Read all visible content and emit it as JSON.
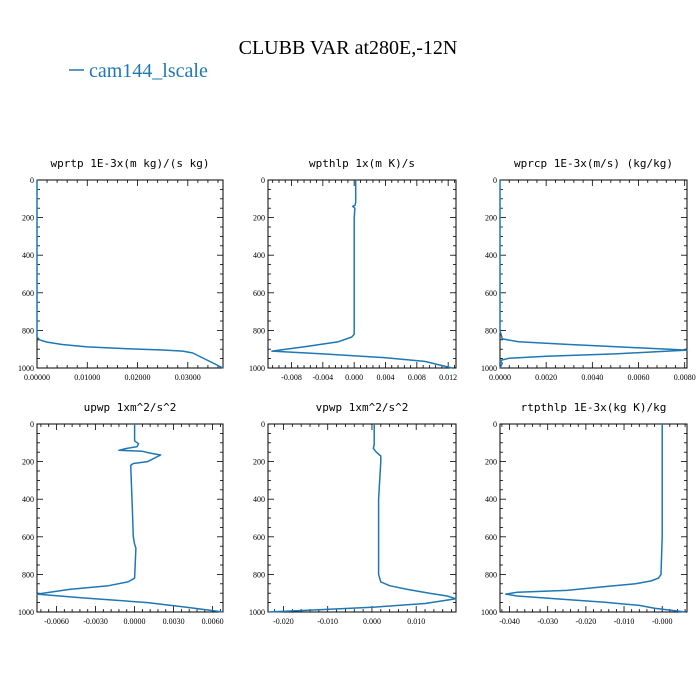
{
  "figure": {
    "title": "CLUBB VAR at280E,-12N",
    "legend": [
      {
        "name": "cam144_lscale",
        "color": "#1f77b4"
      }
    ]
  },
  "chart_data": [
    {
      "type": "line",
      "title": "wprtp  1E-3x(m kg)/(s kg)",
      "xlim": [
        0,
        0.037
      ],
      "ylim": [
        1000,
        0
      ],
      "xticks": [
        0,
        0.01,
        0.02,
        0.03
      ],
      "xtick_labels": [
        "0.00000",
        "0.01000",
        "0.02000",
        "0.03000"
      ],
      "yticks": [
        0,
        200,
        400,
        600,
        800,
        1000
      ],
      "ytick_labels": [
        "0",
        "200",
        "400",
        "600",
        "800",
        "1000"
      ],
      "series": [
        {
          "color": "#1f77b4",
          "x": [
            0,
            0,
            0,
            0.0005,
            0.002,
            0.005,
            0.01,
            0.018,
            0.025,
            0.029,
            0.031,
            0.037
          ],
          "y": [
            0,
            400,
            835,
            850,
            862,
            875,
            888,
            898,
            904,
            910,
            920,
            1000
          ]
        }
      ]
    },
    {
      "type": "line",
      "title": "wpthlp  1x(m K)/s",
      "xlim": [
        -0.011,
        0.013
      ],
      "ylim": [
        1000,
        0
      ],
      "xticks": [
        -0.008,
        -0.004,
        0,
        0.004,
        0.008,
        0.012
      ],
      "xtick_labels": [
        "-0.008",
        "-0.004",
        "0.000",
        "0.004",
        "0.008",
        "0.012"
      ],
      "yticks": [
        0,
        200,
        400,
        600,
        800,
        1000
      ],
      "ytick_labels": [
        "0",
        "200",
        "400",
        "600",
        "800",
        "1000"
      ],
      "series": [
        {
          "color": "#1f77b4",
          "x": [
            0.0002,
            0.0002,
            0.0001,
            -0.0002,
            0.0001,
            0,
            0,
            -0.0003,
            -0.002,
            -0.006,
            -0.0105,
            -0.004,
            0.004,
            0.009,
            0.0125
          ],
          "y": [
            0,
            120,
            135,
            140,
            150,
            200,
            820,
            835,
            860,
            885,
            910,
            925,
            945,
            965,
            1000
          ]
        }
      ]
    },
    {
      "type": "line",
      "title": "wprcp  1E-3x(m/s) (kg/kg)",
      "xlim": [
        0,
        0.0081
      ],
      "ylim": [
        1000,
        0
      ],
      "xticks": [
        0,
        0.002,
        0.004,
        0.006,
        0.008
      ],
      "xtick_labels": [
        "0.0000",
        "0.0020",
        "0.0040",
        "0.0060",
        "0.0080"
      ],
      "yticks": [
        0,
        200,
        400,
        600,
        800,
        1000
      ],
      "ytick_labels": [
        "0",
        "200",
        "400",
        "600",
        "800",
        "1000"
      ],
      "series": [
        {
          "color": "#1f77b4",
          "x": [
            0,
            0,
            0.0001,
            0.0008,
            0.003,
            0.0055,
            0.0081,
            0.005,
            0.002,
            0.0004,
            0,
            0.0001,
            0
          ],
          "y": [
            0,
            800,
            845,
            860,
            875,
            890,
            905,
            925,
            938,
            948,
            960,
            975,
            1000
          ]
        }
      ]
    },
    {
      "type": "line",
      "title": "upwp  1xm^2/s^2",
      "xlim": [
        -0.0075,
        0.0068
      ],
      "ylim": [
        1000,
        0
      ],
      "xticks": [
        -0.006,
        -0.003,
        0,
        0.003,
        0.006
      ],
      "xtick_labels": [
        "-0.0060",
        "-0.0030",
        "0.0000",
        "0.0030",
        "0.0060"
      ],
      "yticks": [
        0,
        200,
        400,
        600,
        800,
        1000
      ],
      "ytick_labels": [
        "0",
        "200",
        "400",
        "600",
        "800",
        "1000"
      ],
      "series": [
        {
          "color": "#1f77b4",
          "x": [
            0,
            0,
            0.0003,
            0.0002,
            -0.0006,
            -0.0012,
            0.0006,
            0.0012,
            0.002,
            0.001,
            -0.0001,
            -0.0003,
            -0.0002,
            -0.0001,
            0,
            0.0001,
            0,
            -0.0005,
            -0.002,
            -0.005,
            -0.0075,
            -0.004,
            0.001,
            0.004,
            0.0068
          ],
          "y": [
            0,
            90,
            105,
            120,
            130,
            140,
            145,
            155,
            165,
            200,
            210,
            220,
            400,
            600,
            640,
            660,
            820,
            840,
            860,
            880,
            905,
            925,
            950,
            975,
            1000
          ]
        }
      ]
    },
    {
      "type": "line",
      "title": "vpwp  1xm^2/s^2",
      "xlim": [
        -0.0235,
        0.019
      ],
      "ylim": [
        1000,
        0
      ],
      "xticks": [
        -0.02,
        -0.01,
        0,
        0.01
      ],
      "xtick_labels": [
        "-0.020",
        "-0.010",
        "0.000",
        "0.010"
      ],
      "yticks": [
        0,
        200,
        400,
        600,
        800,
        1000
      ],
      "ytick_labels": [
        "0",
        "200",
        "400",
        "600",
        "800",
        "1000"
      ],
      "series": [
        {
          "color": "#1f77b4",
          "x": [
            0.0005,
            0.0005,
            0.0003,
            0.001,
            0.002,
            0.002,
            0.0015,
            0.0015,
            0.002,
            0.004,
            0.008,
            0.013,
            0.017,
            0.019,
            0.012,
            0,
            -0.012,
            -0.0235
          ],
          "y": [
            0,
            110,
            130,
            150,
            170,
            200,
            400,
            800,
            840,
            860,
            880,
            900,
            915,
            930,
            955,
            975,
            988,
            1000
          ]
        }
      ]
    },
    {
      "type": "line",
      "title": "rtpthlp  1E-3x(kg K)/kg",
      "xlim": [
        -0.0425,
        0.0065
      ],
      "ylim": [
        1000,
        0
      ],
      "xticks": [
        -0.04,
        -0.03,
        -0.02,
        -0.01,
        0
      ],
      "xtick_labels": [
        "-0.040",
        "-0.030",
        "-0.020",
        "-0.010",
        "-0.000"
      ],
      "yticks": [
        0,
        200,
        400,
        600,
        800,
        1000
      ],
      "ytick_labels": [
        "0",
        "200",
        "400",
        "600",
        "800",
        "1000"
      ],
      "series": [
        {
          "color": "#1f77b4",
          "x": [
            0,
            0,
            -0.0003,
            -0.001,
            -0.003,
            -0.007,
            -0.015,
            -0.025,
            -0.038,
            -0.041,
            -0.038,
            -0.028,
            -0.015,
            -0.006,
            -0.002,
            0.006
          ],
          "y": [
            0,
            600,
            800,
            820,
            835,
            850,
            865,
            885,
            895,
            905,
            915,
            930,
            948,
            965,
            980,
            1000
          ]
        }
      ]
    }
  ]
}
